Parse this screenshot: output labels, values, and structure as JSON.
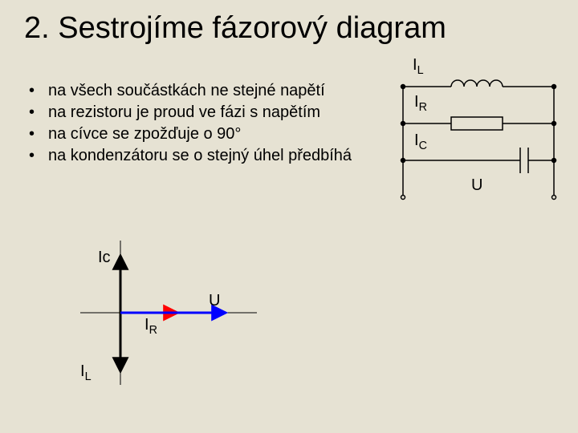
{
  "background_color": "#e6e2d3",
  "title": {
    "text": "2. Sestrojíme fázorový diagram",
    "fontsize": 38,
    "color": "#000000"
  },
  "bullets": {
    "fontsize": 20,
    "color": "#000000",
    "items": [
      "na všech součástkách ne stejné napětí",
      "na rezistoru je proud ve fázi s napětím",
      "na cívce se zpožďuje o 90°",
      "na kondenzátoru se o stejný úhel předbíhá"
    ]
  },
  "circuit": {
    "stroke": "#000000",
    "stroke_width": 1.5,
    "labels": {
      "IL": {
        "text": "I",
        "sub": "L"
      },
      "IR": {
        "text": "I",
        "sub": "R"
      },
      "IC": {
        "text": "I",
        "sub": "C"
      },
      "U": {
        "text": "U"
      }
    },
    "node_radius": 2.5
  },
  "phasor": {
    "axis_color": "#000000",
    "arrows": {
      "U": {
        "color": "#0000ff",
        "label": "U"
      },
      "IR": {
        "color": "#ff0000",
        "label_text": "I",
        "label_sub": "R"
      },
      "Ic": {
        "color": "#000000",
        "label": "Ic"
      },
      "IL": {
        "color": "#000000",
        "label_text": "I",
        "label_sub": "L"
      }
    },
    "arrow_width": 3
  }
}
